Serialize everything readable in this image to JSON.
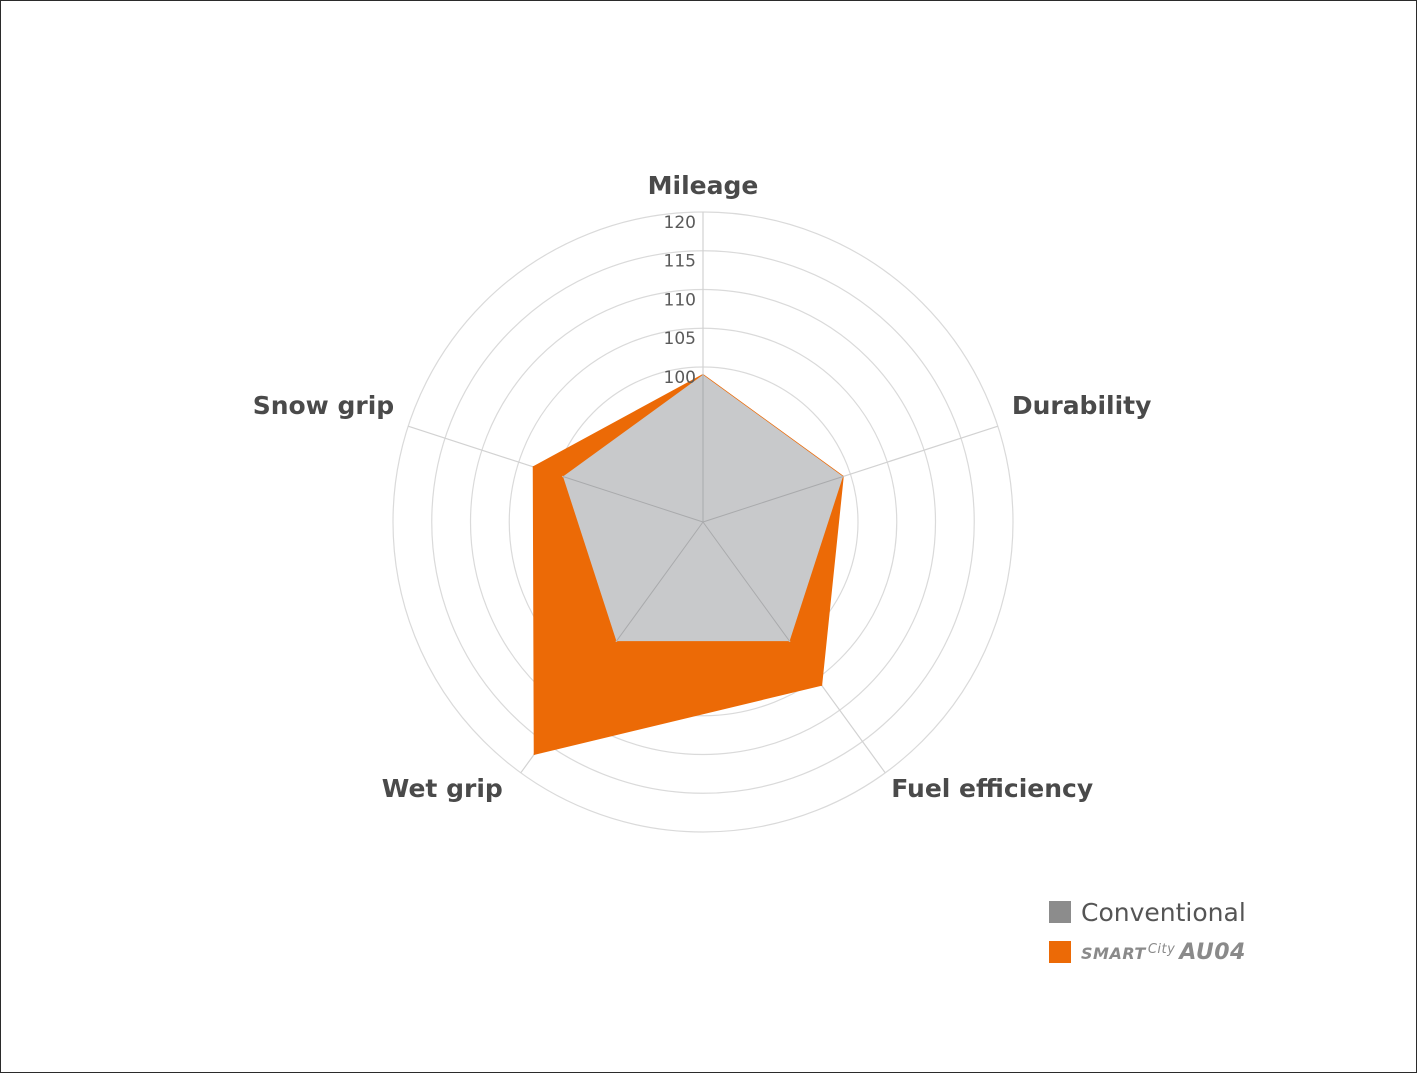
{
  "chart_data": {
    "type": "radar",
    "axes": [
      "Mileage",
      "Durability",
      "Fuel efficiency",
      "Wet grip",
      "Snow grip"
    ],
    "ticks": [
      "100",
      "105",
      "110",
      "115",
      "120"
    ],
    "range": [
      81,
      121
    ],
    "grid": true,
    "series": [
      {
        "name": "Conventional",
        "color": "#c8c9cb",
        "values": [
          100,
          100,
          100,
          100,
          100
        ]
      },
      {
        "name": "SMART City AU04",
        "color": "#ec6a06",
        "values": [
          100,
          100,
          107,
          118,
          104
        ]
      }
    ],
    "legend_position": "bottom-right"
  },
  "legend": {
    "conventional_label": "Conventional",
    "conventional_color": "#8c8c8c",
    "brand_color": "#ec6a06",
    "brand_part1": "SMART",
    "brand_part2": "City",
    "brand_part3": "AU04"
  }
}
